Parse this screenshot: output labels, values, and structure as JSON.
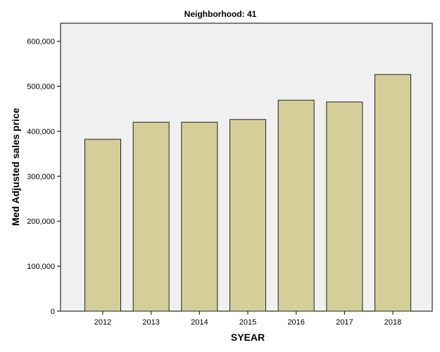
{
  "chart_data": {
    "type": "bar",
    "title": "Neighborhood: 41",
    "xlabel": "SYEAR",
    "ylabel": "Med Adjusted sales price",
    "categories": [
      "2012",
      "2013",
      "2014",
      "2015",
      "2016",
      "2017",
      "2018"
    ],
    "values": [
      382000,
      420000,
      420000,
      426000,
      469000,
      465000,
      526000
    ],
    "ylim": [
      0,
      640000
    ],
    "yticks": [
      0,
      100000,
      200000,
      300000,
      400000,
      500000,
      600000
    ],
    "ytick_labels": [
      "0",
      "100,000",
      "200,000",
      "300,000",
      "400,000",
      "500,000",
      "600,000"
    ],
    "grid": false,
    "legend": "none",
    "colors": {
      "bar_fill": "#d4cf98",
      "bar_stroke": "#222222",
      "plot_background": "#f0f0f0",
      "page_background": "#ffffff"
    }
  }
}
